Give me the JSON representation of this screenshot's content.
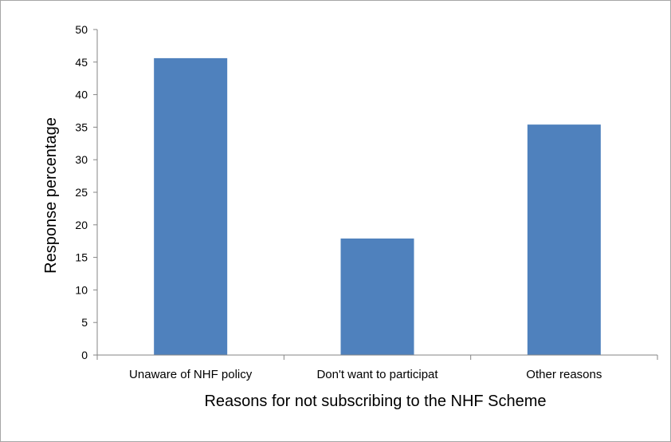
{
  "chart_data": {
    "type": "bar",
    "categories": [
      "Unaware of NHF policy",
      "Don't want to participat",
      "Other reasons"
    ],
    "values": [
      45.6,
      17.9,
      35.4
    ],
    "title": "",
    "xlabel": "Reasons for not subscribing to the NHF Scheme",
    "ylabel": "Response percentage",
    "ylim": [
      0,
      50
    ],
    "yticks": [
      0,
      5,
      10,
      15,
      20,
      25,
      30,
      35,
      40,
      45,
      50
    ],
    "grid": false,
    "legend": "none",
    "bar_color": "#4f81bd",
    "axis_color": "#868686"
  }
}
